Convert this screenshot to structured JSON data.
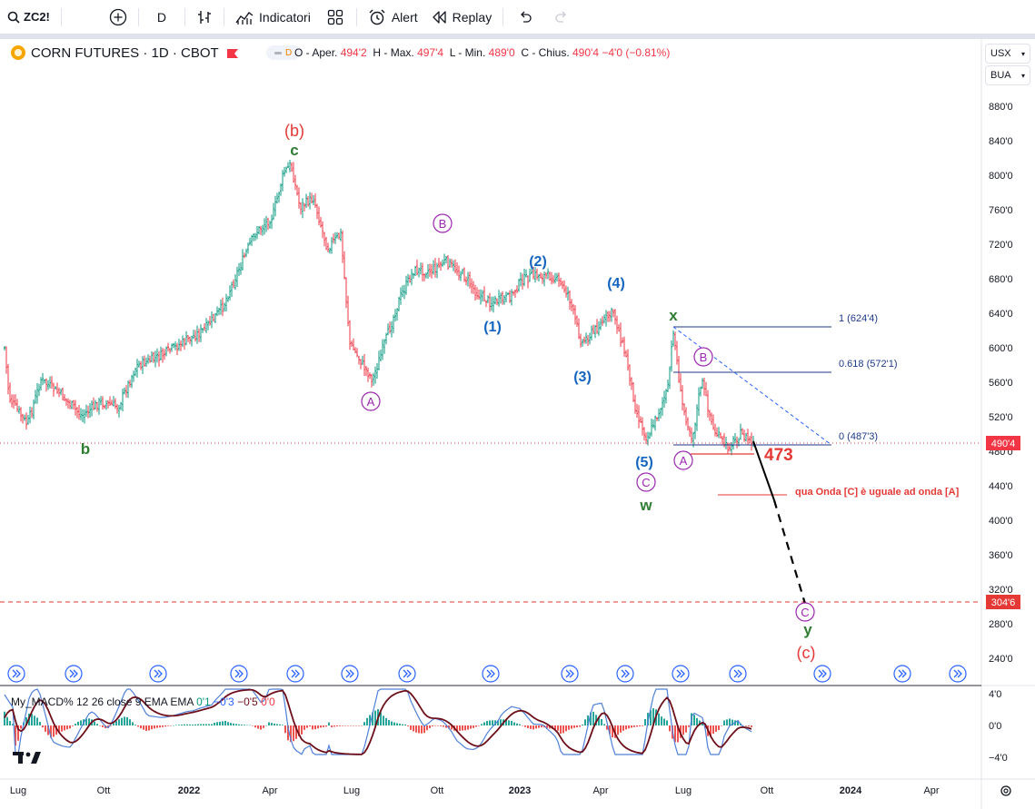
{
  "toolbar": {
    "symbol": "ZC2!",
    "interval": "D",
    "indicators_label": "Indicatori",
    "alert_label": "Alert",
    "replay_label": "Replay"
  },
  "legend": {
    "title": "CORN FUTURES · 1D · CBOT",
    "pill_letter": "D",
    "open_label": "O - Aper.",
    "open": "494'2",
    "high_label": "H - Max.",
    "high": "497'4",
    "low_label": "L - Min.",
    "low": "489'0",
    "close_label": "C - Chius.",
    "close": "490'4",
    "change": "−4'0 (−0.81%)"
  },
  "right_selectors": {
    "currency": "USX",
    "unit": "BUA"
  },
  "price_axis": {
    "ticks": [
      "880'0",
      "840'0",
      "800'0",
      "760'0",
      "720'0",
      "680'0",
      "640'0",
      "600'0",
      "560'0",
      "520'0",
      "480'0",
      "440'0",
      "400'0",
      "360'0",
      "320'0",
      "280'0",
      "240'0"
    ],
    "last_price_label": "490'4",
    "target_price_label": "304'6"
  },
  "macd": {
    "legend_name": "My_MACD% 12 26 close 9 EMA EMA",
    "v1": "0'1",
    "v2": "−0'3",
    "v3": "−0'5",
    "v4": "0'0",
    "ticks": [
      "4'0",
      "0'0",
      "−4'0"
    ]
  },
  "time_axis": [
    "Lug",
    "Ott",
    "2022",
    "Apr",
    "Lug",
    "Ott",
    "2023",
    "Apr",
    "Lug",
    "Ott",
    "2024",
    "Apr"
  ],
  "annotations": {
    "wave_b_paren": "(b)",
    "wave_c_small": "c",
    "wave_b_small": "b",
    "circle_A1": "A",
    "circle_B1": "B",
    "wave_1": "(1)",
    "wave_2": "(2)",
    "wave_3": "(3)",
    "wave_4": "(4)",
    "wave_5": "(5)",
    "circle_C1": "C",
    "wave_w": "w",
    "wave_x": "x",
    "circle_B2": "B",
    "circle_A2": "A",
    "fib_1": "1 (624'4)",
    "fib_0618": "0.618 (572'1)",
    "fib_0": "0 (487'3)",
    "level_473": "473",
    "note": "qua Onda [C] è uguale ad onda [A]",
    "circle_C2": "C",
    "wave_y": "y",
    "wave_c_paren": "(c)"
  },
  "colors": {
    "up": "#089981",
    "down": "#f23645",
    "blue": "#2962ff",
    "navy": "#1e3a8a",
    "purple": "#9c27b0",
    "green": "#2e7d32",
    "red": "#e53935"
  }
}
